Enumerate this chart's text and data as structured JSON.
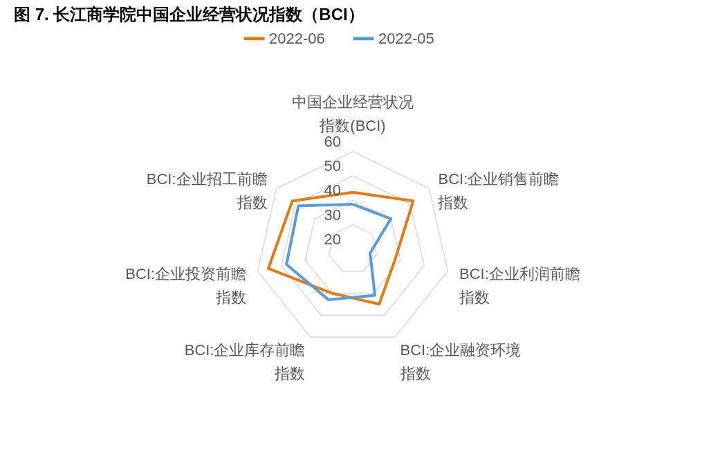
{
  "chart_data": {
    "type": "radar",
    "title": "图 7. 长江商学院中国企业经营状况指数（BCI）",
    "categories": [
      "中国企业经营状况指数(BCI)",
      "BCI:企业销售前瞻指数",
      "BCI:企业利润前瞻指数",
      "BCI:企业融资环境指数",
      "BCI:企业库存前瞻指数",
      "BCI:企业投资前瞻指数",
      "BCI:企业招工前瞻指数"
    ],
    "series": [
      {
        "name": "2022-06",
        "color": "#e07b16",
        "values": [
          43.3,
          51.7,
          37.9,
          45.0,
          40.0,
          55.5,
          51.7
        ]
      },
      {
        "name": "2022-05",
        "color": "#5b9bd5",
        "values": [
          38.4,
          40.0,
          27.3,
          41.0,
          43.0,
          47.9,
          48.5
        ]
      }
    ],
    "ylim": [
      20,
      60
    ],
    "yticks": [
      20,
      30,
      40,
      50,
      60
    ],
    "grid": true,
    "legend": "top",
    "line_style": "solid",
    "marker": "none"
  }
}
